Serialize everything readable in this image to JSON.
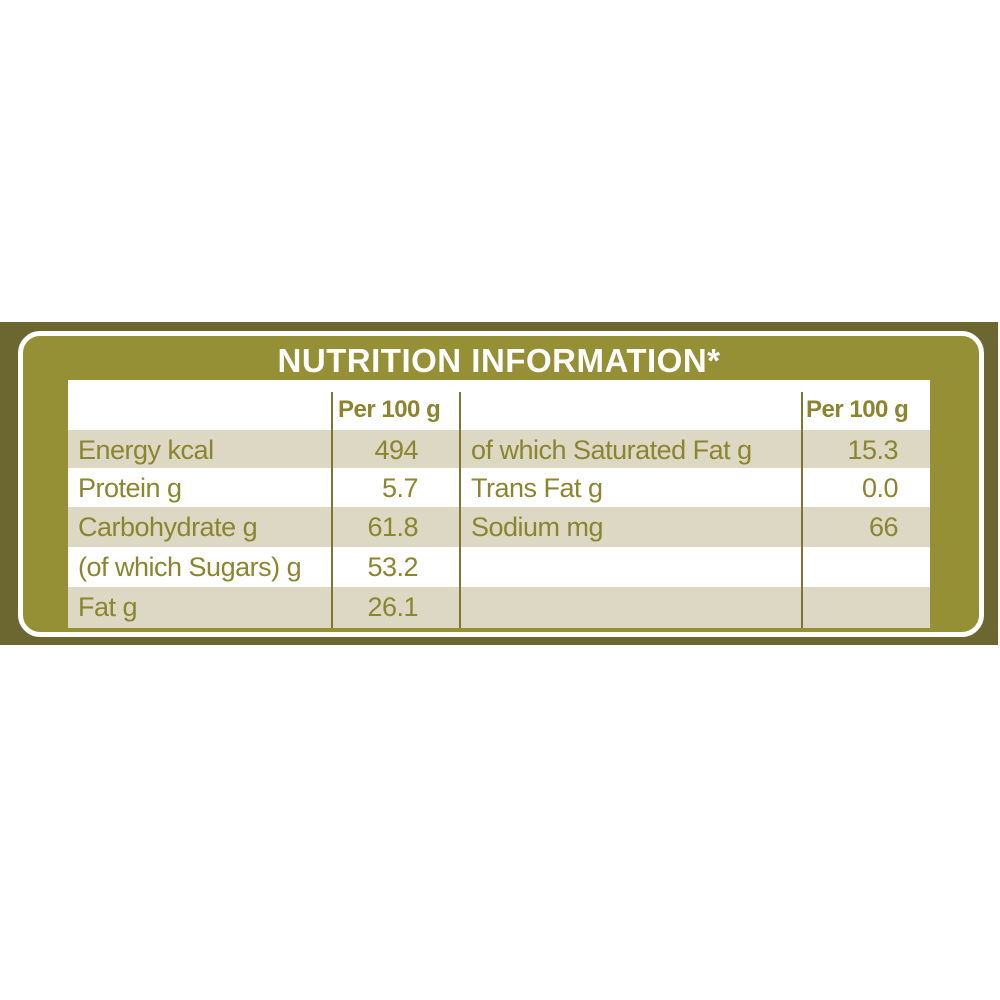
{
  "title": "NUTRITION INFORMATION*",
  "column_header": "Per 100 g",
  "left_rows": [
    {
      "label": "Energy kcal",
      "value": "494"
    },
    {
      "label": "Protein g",
      "value": "5.7"
    },
    {
      "label": "Carbohydrate g",
      "value": "61.8"
    },
    {
      "label": "(of which Sugars) g",
      "value": "53.2"
    },
    {
      "label": "Fat g",
      "value": "26.1"
    }
  ],
  "right_rows": [
    {
      "label": "of which Saturated Fat g",
      "value": "15.3"
    },
    {
      "label": "Trans Fat g",
      "value": "0.0"
    },
    {
      "label": "Sodium mg",
      "value": "66"
    },
    {
      "label": "",
      "value": ""
    },
    {
      "label": "",
      "value": ""
    }
  ],
  "colors": {
    "frame_dark": "#6c6731",
    "olive": "#958f35",
    "text": "#8b852f",
    "row_shade": "#dcd8c3"
  }
}
